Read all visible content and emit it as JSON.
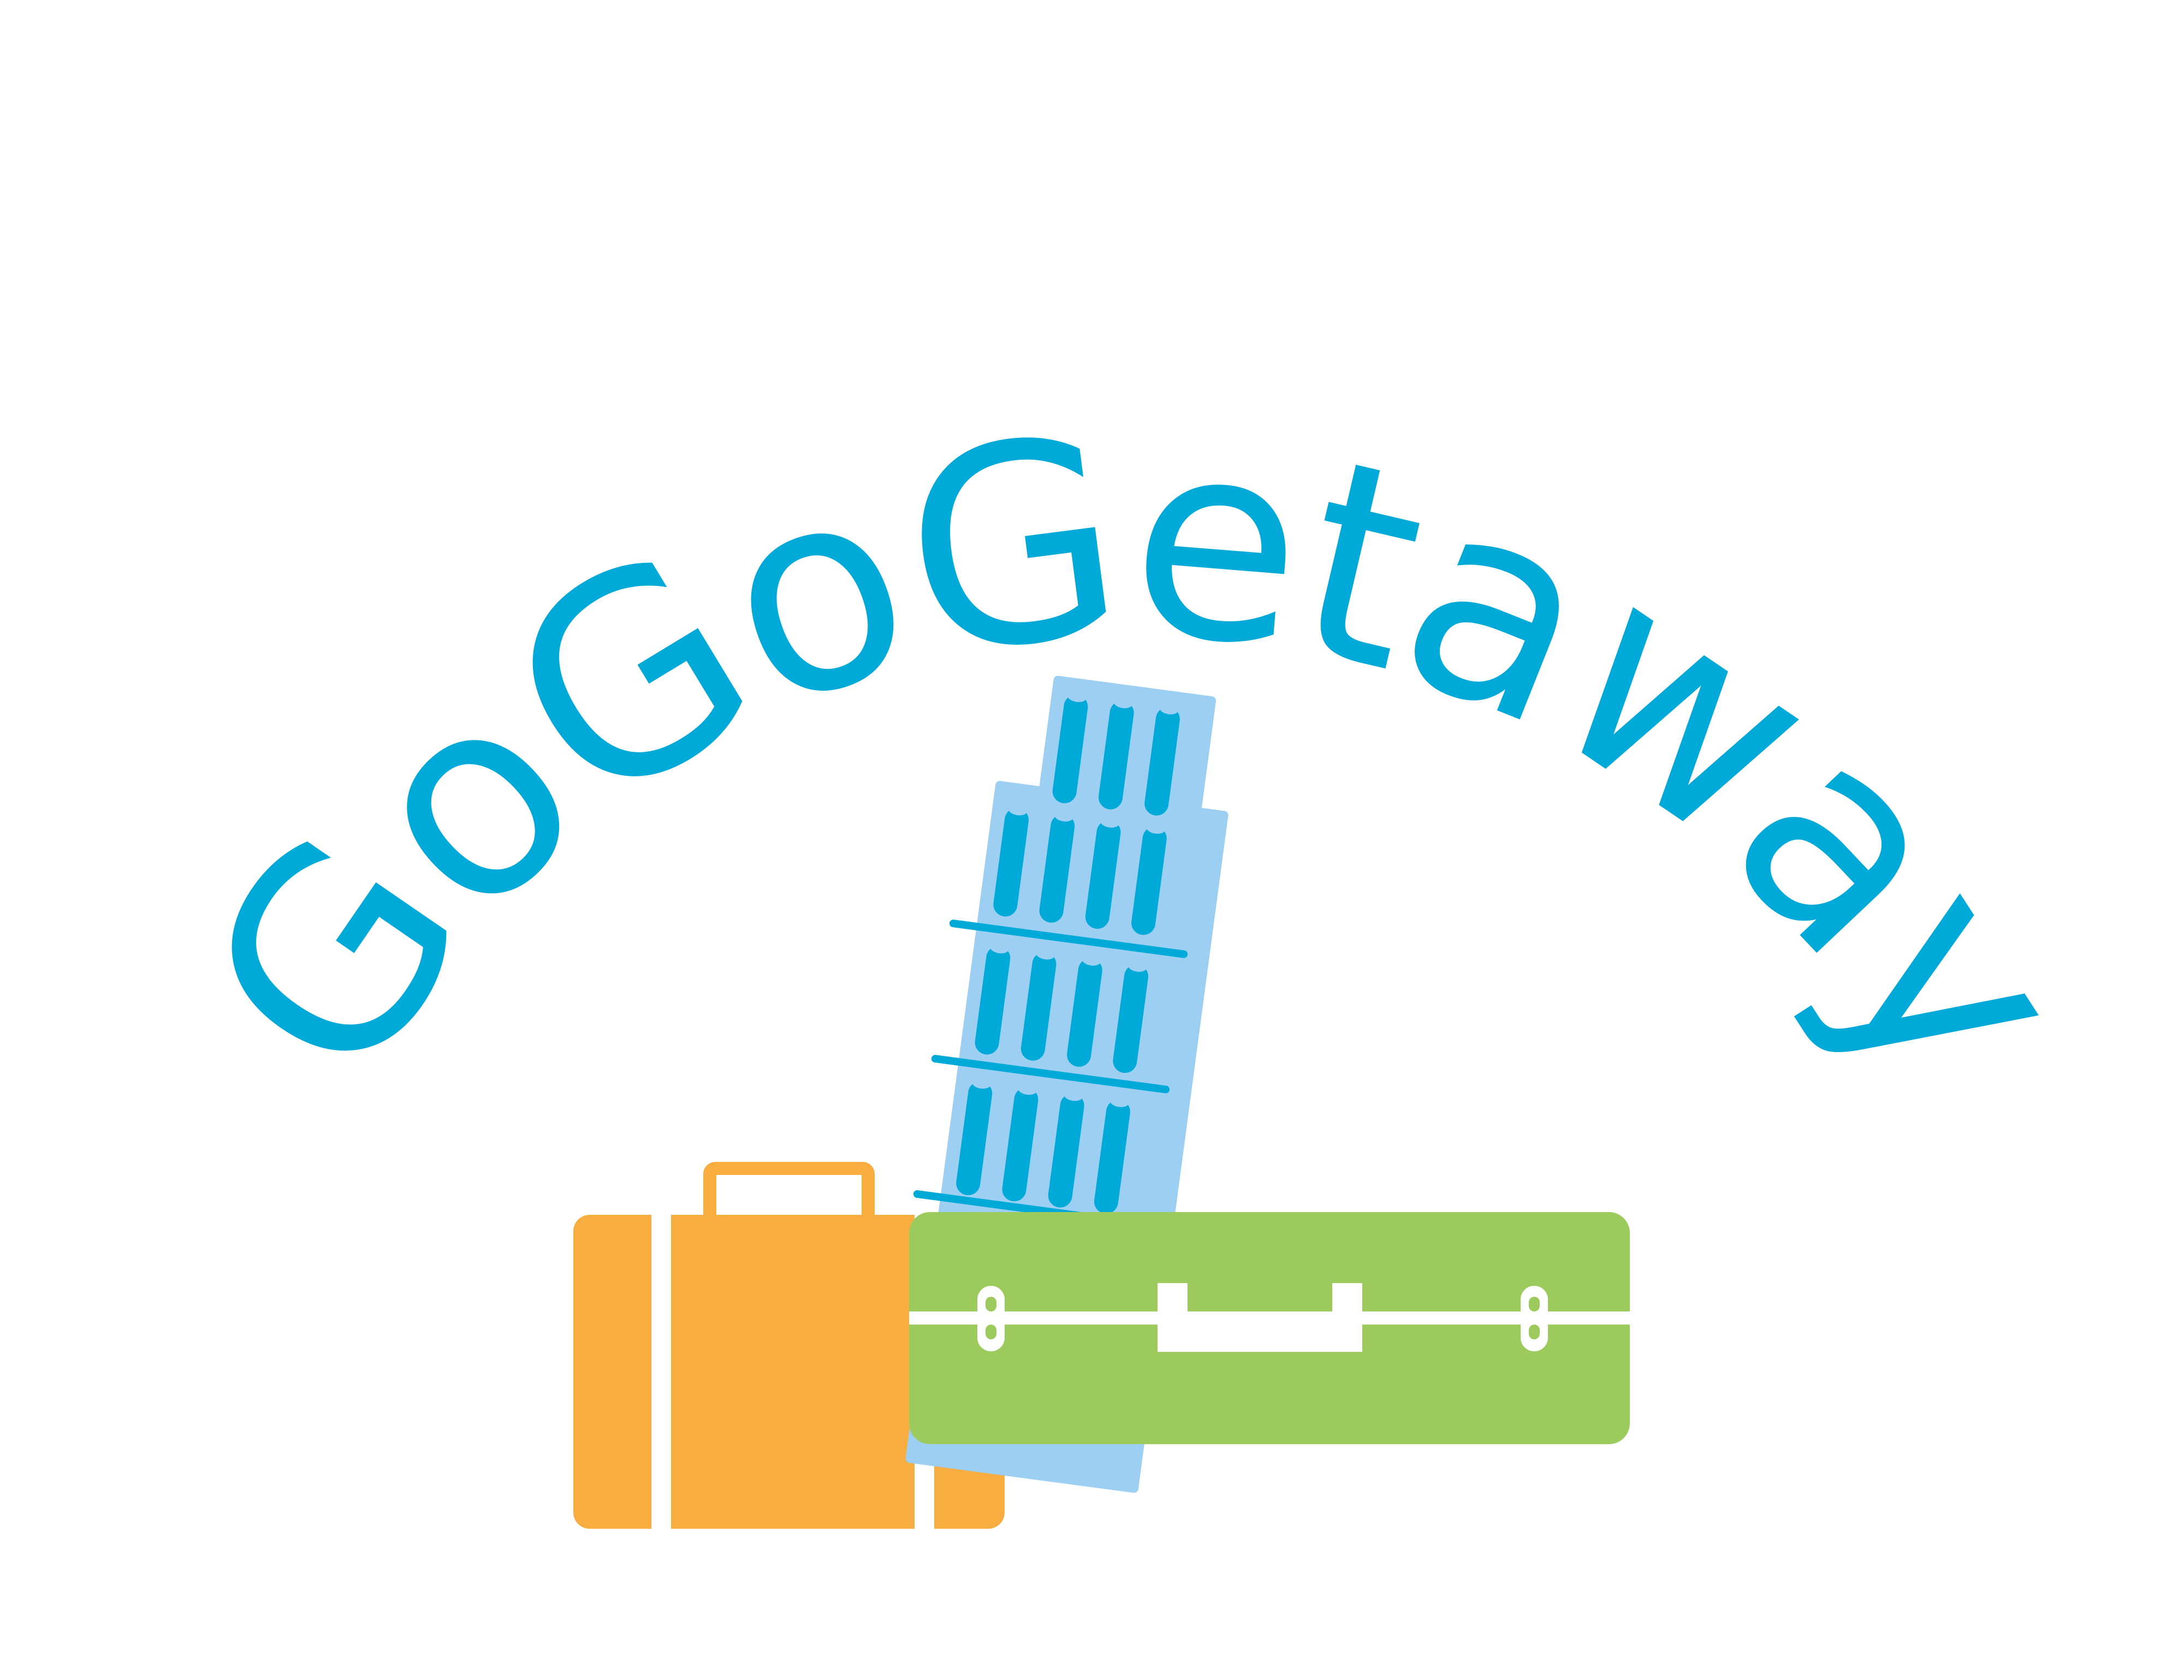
{
  "logo": {
    "wordmark": "GoGoGetaway",
    "colors": {
      "text": "#00aad8",
      "tower_body": "#9ccff1",
      "tower_detail": "#00aad8",
      "orange_case": "#f7ad40",
      "green_case": "#9dca5c",
      "strap": "#ffffff",
      "background": "#ffffff"
    },
    "icons": [
      "leaning-tower-icon",
      "orange-suitcase-icon",
      "green-suitcase-icon"
    ]
  }
}
